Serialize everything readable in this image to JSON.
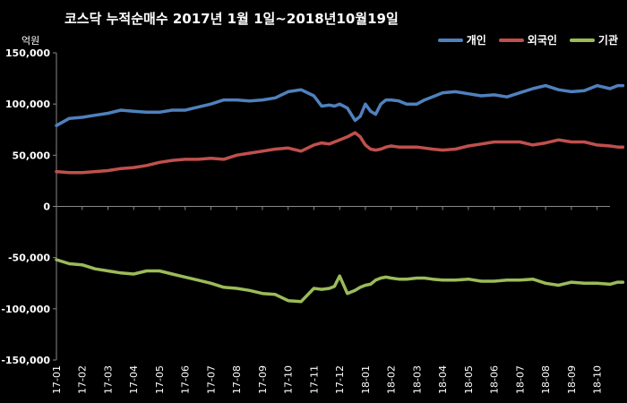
{
  "chart_data": {
    "type": "line",
    "title": "코스닥 누적순매수 2017년 1월 1일~2018년10월19일",
    "ylabel": "억원",
    "xlabel": "",
    "ylim": [
      -150000,
      150000
    ],
    "yticks": [
      {
        "value": 150000,
        "label": "150,000"
      },
      {
        "value": 100000,
        "label": "100,000"
      },
      {
        "value": 50000,
        "label": "50,000"
      },
      {
        "value": 0,
        "label": "0"
      },
      {
        "value": -50000,
        "label": "-50,000"
      },
      {
        "value": -100000,
        "label": "-100,000"
      },
      {
        "value": -150000,
        "label": "-150,000"
      }
    ],
    "grid": false,
    "legend_position": "top-right",
    "categories": [
      "17-01",
      "17-02",
      "17-03",
      "17-04",
      "17-05",
      "17-06",
      "17-07",
      "17-08",
      "17-09",
      "17-10",
      "17-11",
      "17-12",
      "18-01",
      "18-02",
      "18-03",
      "18-04",
      "18-05",
      "18-06",
      "18-07",
      "18-08",
      "18-09",
      "18-10"
    ],
    "x": [
      0,
      0.5,
      1,
      1.5,
      2,
      2.5,
      3,
      3.5,
      4,
      4.5,
      5,
      5.5,
      6,
      6.5,
      7,
      7.5,
      8,
      8.5,
      9,
      9.5,
      10,
      10.3,
      10.6,
      10.8,
      11,
      11.3,
      11.6,
      11.8,
      12,
      12.2,
      12.4,
      12.6,
      12.8,
      13,
      13.3,
      13.6,
      14,
      14.3,
      14.6,
      15,
      15.5,
      16,
      16.5,
      17,
      17.5,
      18,
      18.5,
      19,
      19.5,
      20,
      20.5,
      21,
      21.5,
      21.8,
      22
    ],
    "series": [
      {
        "name": "개인",
        "color": "#4F81BD",
        "values": [
          79000,
          86000,
          87000,
          89000,
          91000,
          94000,
          93000,
          92000,
          92000,
          94000,
          94000,
          97000,
          100000,
          104000,
          104000,
          103000,
          104000,
          106000,
          112000,
          114000,
          108000,
          98000,
          99000,
          98000,
          100000,
          96000,
          84000,
          88000,
          100000,
          93000,
          90000,
          100000,
          104000,
          104000,
          103000,
          100000,
          100000,
          104000,
          107000,
          111000,
          112000,
          110000,
          108000,
          109000,
          107000,
          111000,
          115000,
          118000,
          114000,
          112000,
          113000,
          118000,
          115000,
          118000,
          118000
        ]
      },
      {
        "name": "외국인",
        "color": "#C0504D",
        "values": [
          34000,
          33000,
          33000,
          34000,
          35000,
          37000,
          38000,
          40000,
          43000,
          45000,
          46000,
          46000,
          47000,
          46000,
          50000,
          52000,
          54000,
          56000,
          57000,
          54000,
          60000,
          62000,
          61000,
          63000,
          65000,
          68000,
          72000,
          68000,
          60000,
          56000,
          55000,
          56000,
          58000,
          59000,
          58000,
          58000,
          58000,
          57000,
          56000,
          55000,
          56000,
          59000,
          61000,
          63000,
          63000,
          63000,
          60000,
          62000,
          65000,
          63000,
          63000,
          60000,
          59000,
          58000,
          58000
        ]
      },
      {
        "name": "기관",
        "color": "#9BBB59",
        "values": [
          -52000,
          -56000,
          -57000,
          -61000,
          -63000,
          -65000,
          -66000,
          -63000,
          -63000,
          -66000,
          -69000,
          -72000,
          -75000,
          -79000,
          -80000,
          -82000,
          -85000,
          -86000,
          -92000,
          -93000,
          -80000,
          -81000,
          -80000,
          -78000,
          -68000,
          -85000,
          -82000,
          -79000,
          -77000,
          -76000,
          -72000,
          -70000,
          -69000,
          -70000,
          -71000,
          -71000,
          -70000,
          -70000,
          -71000,
          -72000,
          -72000,
          -71000,
          -73000,
          -73000,
          -72000,
          -72000,
          -71000,
          -75000,
          -77000,
          -74000,
          -75000,
          -75000,
          -76000,
          -74000,
          -74000
        ]
      }
    ]
  }
}
